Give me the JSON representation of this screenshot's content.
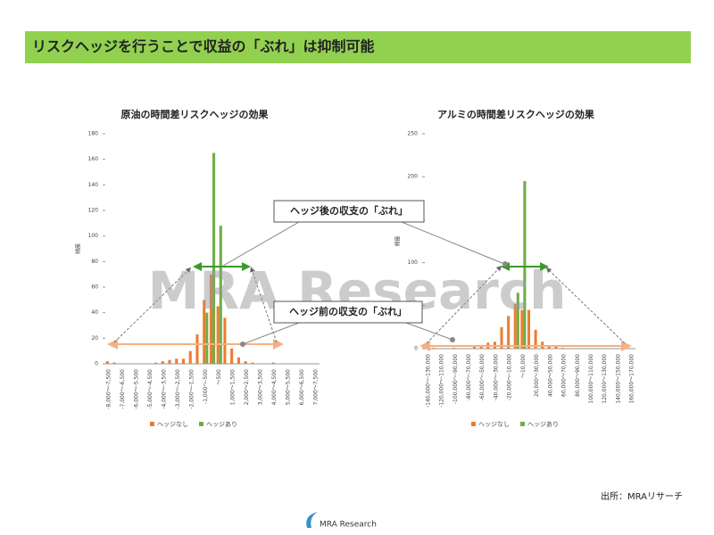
{
  "header": {
    "title": "リスクヘッジを行うことで収益の「ぶれ」は抑制可能"
  },
  "chart_data": [
    {
      "type": "bar",
      "title": "原油の時間差リスクヘッジの効果",
      "y_label": "頻度",
      "categories": [
        "-8,000～-7,500",
        null,
        "-7,000～-6,500",
        null,
        "-6,000～-5,500",
        null,
        "-5,000～-4,500",
        null,
        "-4,000～-3,500",
        null,
        "-3,000～-2,500",
        null,
        "-2,000～-1,500",
        null,
        "-1,000～-500",
        null,
        "～500",
        null,
        "1,000～1,500",
        null,
        "2,000～2,500",
        null,
        "3,000～3,500",
        null,
        "4,000～4,500",
        null,
        "5,000～5,500",
        null,
        "6,000～6,500",
        null,
        "7,000～7,500"
      ],
      "series": [
        {
          "name": "ヘッジなし",
          "color": "#ed7d31",
          "values": [
            2,
            1,
            0,
            0,
            0,
            0,
            0,
            1,
            2,
            3,
            4,
            4,
            10,
            23,
            50,
            70,
            45,
            36,
            12,
            5,
            2,
            1,
            0,
            0,
            1,
            0,
            0,
            0,
            0,
            0,
            0
          ]
        },
        {
          "name": "ヘッジあり",
          "color": "#70ad47",
          "values": [
            0,
            0,
            0,
            0,
            0,
            0,
            0,
            0,
            0,
            0,
            0,
            0,
            0,
            0,
            40,
            165,
            108,
            0,
            0,
            0,
            0,
            0,
            0,
            0,
            0,
            0,
            0,
            0,
            0,
            0,
            0
          ]
        }
      ],
      "ylim": [
        0,
        180
      ],
      "yticks": [
        0,
        20,
        40,
        60,
        80,
        100,
        120,
        140,
        160,
        180
      ]
    },
    {
      "type": "bar",
      "title": "アルミの時間差リスクヘッジの効果",
      "y_label": "頻度",
      "categories": [
        "-140,000～-130,000",
        null,
        "-120,000～-110,000",
        null,
        "-100,000～-90,000",
        null,
        "-80,000～-70,000",
        null,
        "-60,000～-50,000",
        null,
        "-40,000～-30,000",
        null,
        "-20,000～-10,000",
        null,
        "～10,000",
        null,
        "20,000～30,000",
        null,
        "40,000～50,000",
        null,
        "60,000～70,000",
        null,
        "80,000～90,000",
        null,
        "100,000～110,000",
        null,
        "120,000～130,000",
        null,
        "140,000～150,000",
        null,
        "160,000～170,000"
      ],
      "series": [
        {
          "name": "ヘッジなし",
          "color": "#ed7d31",
          "values": [
            1,
            1,
            0,
            0,
            1,
            0,
            0,
            2,
            3,
            7,
            8,
            25,
            38,
            52,
            45,
            45,
            22,
            8,
            3,
            3,
            1,
            0,
            0,
            0,
            0,
            0,
            0,
            0,
            0,
            3,
            0
          ]
        },
        {
          "name": "ヘッジあり",
          "color": "#70ad47",
          "values": [
            0,
            0,
            0,
            0,
            0,
            0,
            0,
            0,
            0,
            0,
            0,
            0,
            0,
            65,
            195,
            0,
            0,
            0,
            0,
            0,
            0,
            0,
            0,
            0,
            0,
            0,
            0,
            0,
            0,
            0,
            0
          ]
        }
      ],
      "ylim": [
        0,
        250
      ],
      "yticks": [
        0,
        50,
        100,
        150,
        200,
        250
      ]
    }
  ],
  "annotations": {
    "after": "ヘッジ後の収支の「ぶれ」",
    "before": "ヘッジ前の収支の「ぶれ」",
    "watermark": "MRA Research"
  },
  "footer": {
    "source": "出所：MRAリサーチ",
    "logo": "MRA Research"
  }
}
